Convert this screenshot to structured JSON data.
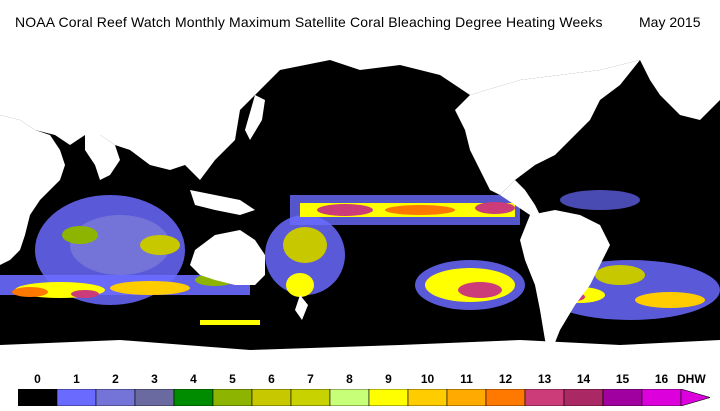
{
  "title": {
    "text": "NOAA Coral Reef Watch Monthly Maximum Satellite Coral Bleaching Degree Heating Weeks",
    "date": "May 2015"
  },
  "map": {
    "background_color": "#000000",
    "land_color": "#ffffff",
    "ocean_no_stress_color": "#000000"
  },
  "legend": {
    "unit": "DHW",
    "ticks": [
      "0",
      "1",
      "2",
      "3",
      "4",
      "5",
      "6",
      "7",
      "8",
      "9",
      "10",
      "11",
      "12",
      "13",
      "14",
      "15",
      "16"
    ],
    "colors": [
      "#000000",
      "#6a6aff",
      "#7474d8",
      "#6a6aa0",
      "#008c00",
      "#8cb400",
      "#c8c800",
      "#c8d200",
      "#c8ff78",
      "#ffff00",
      "#ffcc00",
      "#ffaa00",
      "#ff7800",
      "#cc3c78",
      "#aa2864",
      "#a000a0",
      "#dc00dc"
    ]
  }
}
